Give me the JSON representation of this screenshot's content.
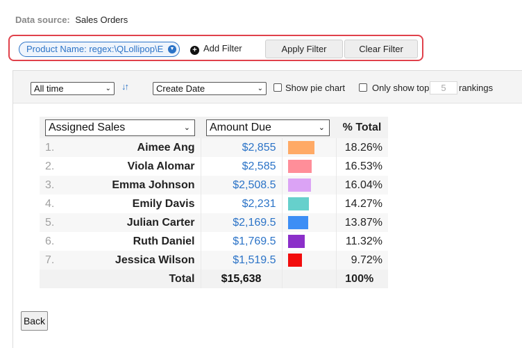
{
  "data_source": {
    "label": "Data source:",
    "value": "Sales Orders"
  },
  "filter": {
    "pill_text": "Product Name: regex:\\QLollipop\\E",
    "add_label": "Add Filter",
    "apply_label": "Apply Filter",
    "clear_label": "Clear Filter"
  },
  "controls": {
    "time_range": "All time",
    "date_field": "Create Date",
    "show_pie_label": "Show pie chart",
    "only_show_top_label": "Only show top",
    "top_n": "5",
    "rankings_label": "rankings"
  },
  "table": {
    "group_by": "Assigned Sales",
    "measure": "Amount Due",
    "pct_header": "% Total",
    "rows": [
      {
        "rank": "1.",
        "name": "Aimee Ang",
        "amount": "$2,855",
        "pct": "18.26%",
        "share": 0.1826,
        "color": "#ffaa66"
      },
      {
        "rank": "2.",
        "name": "Viola Alomar",
        "amount": "$2,585",
        "pct": "16.53%",
        "share": 0.1653,
        "color": "#ff8e99"
      },
      {
        "rank": "3.",
        "name": "Emma Johnson",
        "amount": "$2,508.5",
        "pct": "16.04%",
        "share": 0.1604,
        "color": "#dba3f5"
      },
      {
        "rank": "4.",
        "name": "Emily Davis",
        "amount": "$2,231",
        "pct": "14.27%",
        "share": 0.1427,
        "color": "#66d0cc"
      },
      {
        "rank": "5.",
        "name": "Julian Carter",
        "amount": "$2,169.5",
        "pct": "13.87%",
        "share": 0.1387,
        "color": "#3d8ef5"
      },
      {
        "rank": "6.",
        "name": "Ruth Daniel",
        "amount": "$1,769.5",
        "pct": "11.32%",
        "share": 0.1132,
        "color": "#8b2fc9"
      },
      {
        "rank": "7.",
        "name": "Jessica Wilson",
        "amount": "$1,519.5",
        "pct": "9.72%",
        "share": 0.0972,
        "color": "#f20d0d"
      }
    ],
    "total": {
      "label": "Total",
      "amount": "$15,638",
      "pct": "100%"
    }
  },
  "back_label": "Back"
}
